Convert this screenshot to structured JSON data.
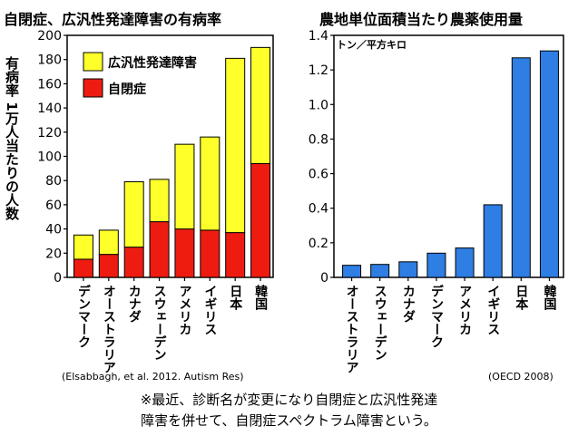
{
  "chart_data": [
    {
      "type": "bar",
      "stacked": true,
      "title": "自閉症、広汎性発達障害の有病率",
      "ylabel": "有病率 1万人当たりの人数",
      "ylim": [
        0,
        200
      ],
      "yticks": [
        "0",
        "20",
        "40",
        "60",
        "80",
        "100",
        "120",
        "140",
        "160",
        "180",
        "200"
      ],
      "categories": [
        "デンマーク",
        "オーストラリア",
        "カナダ",
        "スウェーデン",
        "アメリカ",
        "イギリス",
        "日本",
        "韓国"
      ],
      "series": [
        {
          "name": "自閉症",
          "color": "#ee1c10",
          "values": [
            15,
            19,
            25,
            46,
            40,
            39,
            37,
            94
          ]
        },
        {
          "name": "広汎性発達障害",
          "color": "#ffff2a",
          "values": [
            20,
            20,
            54,
            35,
            70,
            77,
            144,
            96
          ]
        }
      ],
      "totals": [
        35,
        39,
        79,
        81,
        110,
        116,
        181,
        190
      ],
      "source": "(Elsabbagh, et al. 2012. Autism Res)"
    },
    {
      "type": "bar",
      "title": "農地単位面積当たり農薬使用量",
      "ylabel": "トン／平方キロ",
      "ylim": [
        0,
        1.4
      ],
      "yticks": [
        "0",
        "0.2",
        "0.4",
        "0.6",
        "0.8",
        "1.0",
        "1.2",
        "1.4"
      ],
      "categories": [
        "オーストラリア",
        "スウェーデン",
        "カナダ",
        "デンマーク",
        "アメリカ",
        "イギリス",
        "日本",
        "韓国"
      ],
      "series": [
        {
          "name": "",
          "color": "#2e7ee3",
          "values": [
            0.07,
            0.075,
            0.09,
            0.14,
            0.17,
            0.42,
            1.27,
            1.31
          ]
        }
      ],
      "source": "(OECD 2008)"
    }
  ],
  "note": {
    "line1": "※最近、診断名が変更になり自閉症と広汎性発達",
    "line2": "障害を併せて、自閉症スペクトラム障害という。"
  }
}
